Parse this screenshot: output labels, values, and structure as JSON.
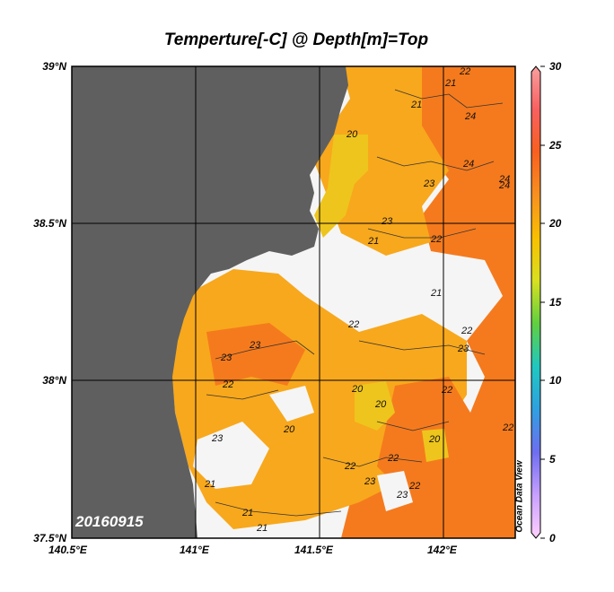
{
  "title": "Temperture[-C] @ Depth[m]=Top",
  "date_label": "20160915",
  "watermark": "Ocean Data View",
  "lat_labels": [
    "39°N",
    "38.5°N",
    "38°N",
    "37.5°N"
  ],
  "lon_labels": [
    "140.5°E",
    "141°E",
    "141.5°E",
    "142°E"
  ],
  "colorbar": {
    "ticks": [
      "30",
      "25",
      "20",
      "15",
      "10",
      "5",
      "0"
    ],
    "range": [
      0,
      30
    ],
    "colors": [
      "#ffd0ff",
      "#c8a0ff",
      "#6e6ef0",
      "#2fa0e0",
      "#20c8c0",
      "#60d040",
      "#d8e020",
      "#f8c000",
      "#f89020",
      "#f86020",
      "#f86060",
      "#f8a0a0"
    ]
  },
  "colors": {
    "land": "#5f5f5f",
    "nodata": "#f5f5f5",
    "warm": "#f57a1d",
    "mid": "#f8a81c",
    "cool": "#eec51c"
  },
  "contour_labels": [
    "22",
    "21",
    "24",
    "20",
    "21",
    "23",
    "24",
    "24",
    "23",
    "21",
    "22",
    "21",
    "22",
    "23",
    "23",
    "22",
    "23",
    "22",
    "20",
    "20",
    "22",
    "20",
    "22",
    "20",
    "23",
    "22",
    "23",
    "22",
    "23",
    "21",
    "21",
    "21",
    "22",
    "24"
  ]
}
